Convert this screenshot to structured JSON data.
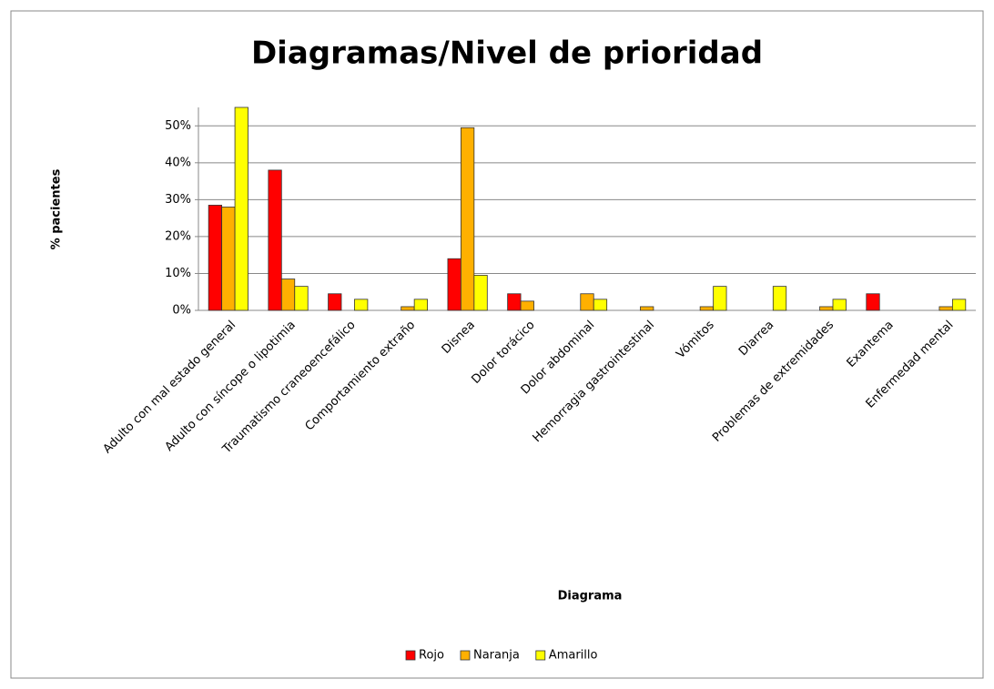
{
  "chart_data": {
    "type": "bar",
    "title": "Diagramas/Nivel de prioridad",
    "x_label": "Diagrama",
    "y_label": "% pacientes",
    "categories": [
      "Adulto con mal estado general",
      "Adulto con síncope o lipotimia",
      "Traumatismo craneoencefálico",
      "Comportamiento extraño",
      "Disnea",
      "Dolor torácico",
      "Dolor abdominal",
      "Hemorragia gastrointestinal",
      "Vómitos",
      "Diarrea",
      "Problemas de extremidades",
      "Exantema",
      "Enfermedad mental"
    ],
    "series": [
      {
        "name": "Rojo",
        "color": "#ff0000",
        "values": [
          28.5,
          38,
          4.5,
          0,
          14,
          4.5,
          0,
          0,
          0,
          0,
          0,
          4.5,
          0
        ]
      },
      {
        "name": "Naranja",
        "color": "#ffb000",
        "values": [
          28,
          8.5,
          0,
          1,
          49.5,
          2.5,
          4.5,
          1,
          1,
          0,
          1,
          0,
          1
        ]
      },
      {
        "name": "Amarillo",
        "color": "#ffff00",
        "values": [
          55,
          6.5,
          3,
          3,
          9.5,
          0,
          3,
          0,
          6.5,
          6.5,
          3,
          0,
          3
        ]
      }
    ],
    "ylim": [
      0,
      55
    ],
    "yticks": [
      {
        "value": 0,
        "label": "0%"
      },
      {
        "value": 10,
        "label": "10%"
      },
      {
        "value": 20,
        "label": "20%"
      },
      {
        "value": 30,
        "label": "30%"
      },
      {
        "value": 40,
        "label": "40%"
      },
      {
        "value": 50,
        "label": "50%"
      }
    ],
    "grid": true,
    "legend": "bottom"
  }
}
